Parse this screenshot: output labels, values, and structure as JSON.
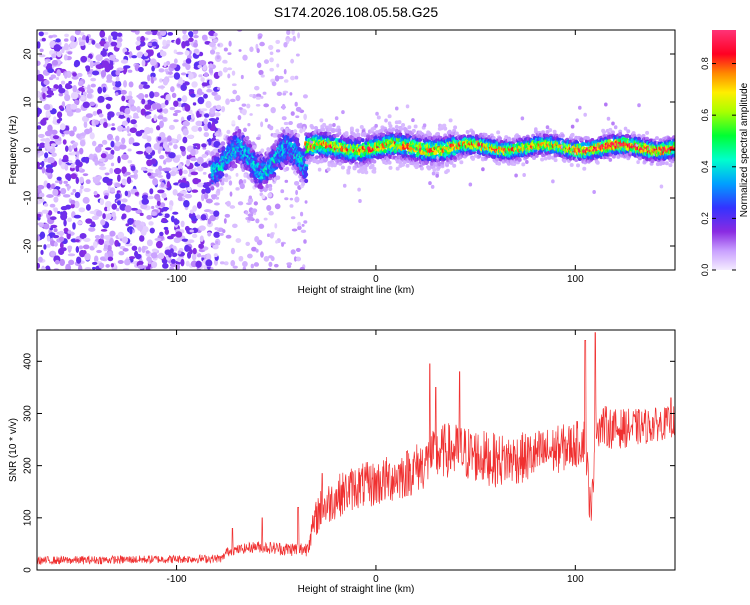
{
  "title": "S174.2026.108.05.58.G25",
  "chart_data": [
    {
      "type": "heatmap",
      "name": "spectrogram",
      "xlabel": "Height of straight line (km)",
      "ylabel": "Frequency (Hz)",
      "xlim": [
        -170,
        150
      ],
      "ylim": [
        -25,
        25
      ],
      "xticks": [
        -100,
        0,
        100
      ],
      "xtick_labels": [
        "-100",
        "0",
        "100"
      ],
      "yticks": [
        -20,
        -10,
        0,
        10,
        20
      ],
      "ytick_labels": [
        "-20",
        "-10",
        "0",
        "10",
        "20"
      ],
      "colorbar": {
        "label": "Normalized spectral amplitude",
        "range": [
          0,
          0.93
        ],
        "ticks": [
          0.0,
          0.2,
          0.4,
          0.6,
          0.8
        ],
        "tick_labels": [
          "0.0",
          "0.2",
          "0.4",
          "0.6",
          "0.8"
        ],
        "colors": [
          "#e0d0ff",
          "#8a2be2",
          "#3333ff",
          "#00ccff",
          "#00ff66",
          "#ccff00",
          "#ff9900",
          "#ff0033",
          "#ff3377"
        ]
      },
      "regions": [
        {
          "x_range": [
            -170,
            -82
          ],
          "description": "broadband noise",
          "amplitude": 0.1
        },
        {
          "x_range": [
            -82,
            -35
          ],
          "center_freq": -2,
          "amplitude": 0.4
        },
        {
          "x_range": [
            -35,
            150
          ],
          "center_freq": 0.5,
          "amplitude": 0.9
        }
      ]
    },
    {
      "type": "line",
      "name": "snr",
      "xlabel": "Height of straight line (km)",
      "ylabel": "SNR (10 * v/v)",
      "xlim": [
        -170,
        150
      ],
      "ylim": [
        0,
        460
      ],
      "xticks": [
        -100,
        0,
        100
      ],
      "xtick_labels": [
        "-100",
        "0",
        "100"
      ],
      "yticks": [
        0,
        100,
        200,
        300,
        400
      ],
      "ytick_labels": [
        "0",
        "100",
        "200",
        "300",
        "400"
      ],
      "color": "#f03030",
      "trend": [
        {
          "x": -170,
          "y": 18
        },
        {
          "x": -120,
          "y": 20
        },
        {
          "x": -77,
          "y": 22
        },
        {
          "x": -75,
          "y": 35
        },
        {
          "x": -60,
          "y": 45
        },
        {
          "x": -45,
          "y": 40
        },
        {
          "x": -35,
          "y": 40
        },
        {
          "x": -29,
          "y": 110
        },
        {
          "x": -20,
          "y": 140
        },
        {
          "x": -10,
          "y": 160
        },
        {
          "x": 0,
          "y": 165
        },
        {
          "x": 15,
          "y": 185
        },
        {
          "x": 25,
          "y": 205
        },
        {
          "x": 28,
          "y": 215
        },
        {
          "x": 35,
          "y": 230
        },
        {
          "x": 50,
          "y": 220
        },
        {
          "x": 60,
          "y": 210
        },
        {
          "x": 75,
          "y": 215
        },
        {
          "x": 90,
          "y": 230
        },
        {
          "x": 100,
          "y": 240
        },
        {
          "x": 105,
          "y": 250
        },
        {
          "x": 108,
          "y": 90
        },
        {
          "x": 110,
          "y": 280
        },
        {
          "x": 120,
          "y": 270
        },
        {
          "x": 135,
          "y": 275
        },
        {
          "x": 150,
          "y": 285
        }
      ],
      "noise_amplitude": [
        {
          "x": -170,
          "y": 8
        },
        {
          "x": -77,
          "y": 8
        },
        {
          "x": -35,
          "y": 15
        },
        {
          "x": -29,
          "y": 40
        },
        {
          "x": 25,
          "y": 50
        },
        {
          "x": 40,
          "y": 55
        },
        {
          "x": 100,
          "y": 45
        },
        {
          "x": 150,
          "y": 30
        }
      ],
      "spikes": [
        {
          "x": -72,
          "y": 80
        },
        {
          "x": -57,
          "y": 100
        },
        {
          "x": -39,
          "y": 120
        },
        {
          "x": -27,
          "y": 185
        },
        {
          "x": 27,
          "y": 395
        },
        {
          "x": 30,
          "y": 350
        },
        {
          "x": 105,
          "y": 440
        },
        {
          "x": 110,
          "y": 455
        },
        {
          "x": 42,
          "y": 380
        },
        {
          "x": 148,
          "y": 330
        }
      ]
    }
  ]
}
